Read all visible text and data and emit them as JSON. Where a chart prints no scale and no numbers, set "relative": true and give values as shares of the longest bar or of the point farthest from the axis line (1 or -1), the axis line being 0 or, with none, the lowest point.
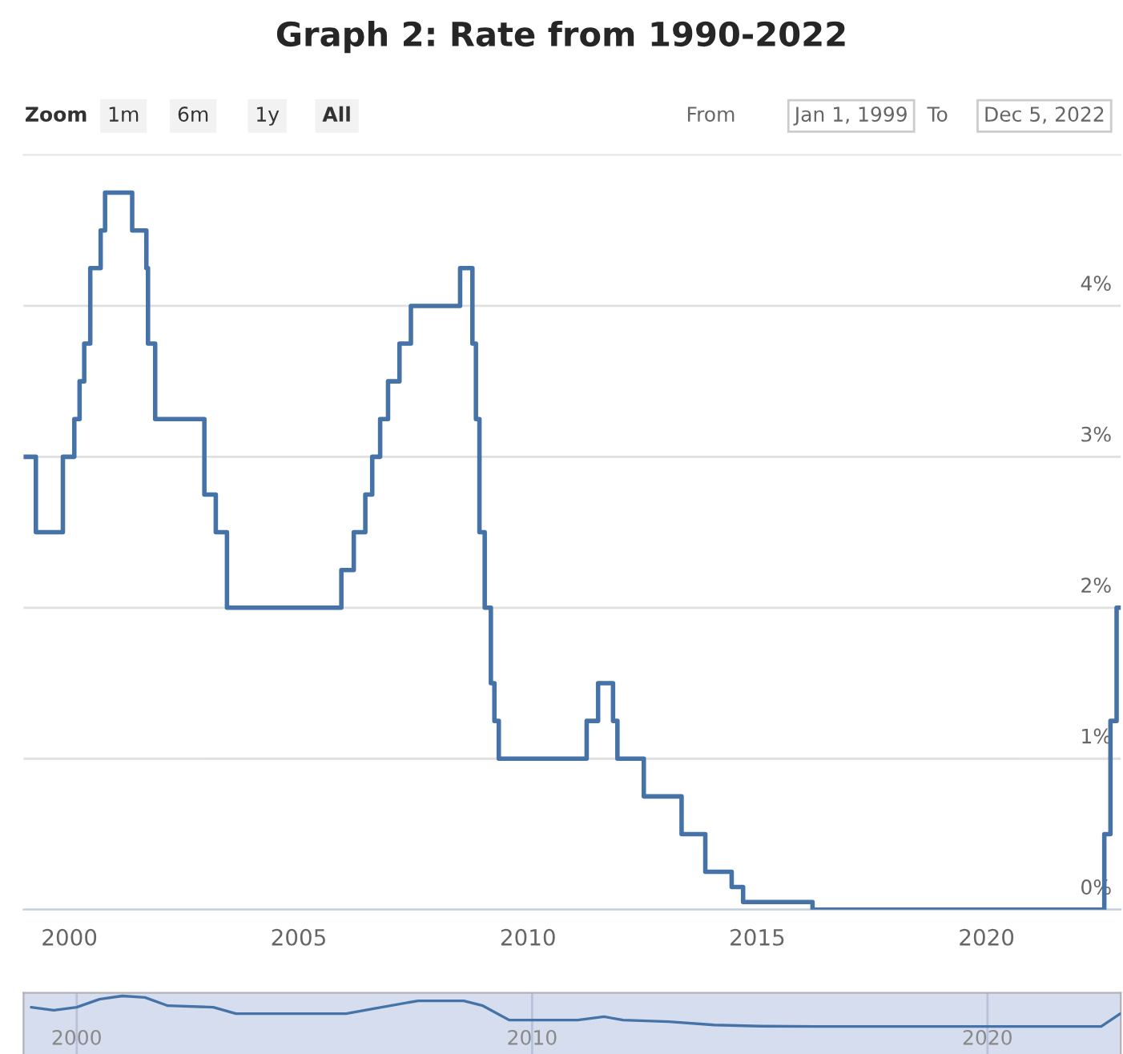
{
  "chart_data": [
    {
      "type": "step",
      "title": "Graph 2: Rate from 1990-2022",
      "annotations": [
        "Zoom",
        "1m",
        "6m",
        "1y",
        "All",
        "From",
        "Jan 1, 1999",
        "To",
        "Dec 5, 2022"
      ],
      "x": [
        "1999-01-01",
        "1999-04-09",
        "1999-11-10",
        "2000-02-09",
        "2000-03-22",
        "2000-04-28",
        "2000-06-15",
        "2000-09-06",
        "2000-10-11",
        "2001-05-15",
        "2001-09-05",
        "2001-09-18",
        "2001-11-14",
        "2002-12-11",
        "2003-03-12",
        "2003-06-09",
        "2005-12-06",
        "2006-03-15",
        "2006-06-15",
        "2006-08-09",
        "2006-10-11",
        "2006-12-13",
        "2007-03-14",
        "2007-06-13",
        "2008-07-09",
        "2008-10-15",
        "2008-11-12",
        "2008-12-10",
        "2009-01-21",
        "2009-03-11",
        "2009-04-08",
        "2009-05-13",
        "2011-04-13",
        "2011-07-13",
        "2011-11-09",
        "2011-12-14",
        "2012-07-11",
        "2013-05-08",
        "2013-11-13",
        "2014-06-11",
        "2014-09-10",
        "2016-03-16",
        "2022-07-27",
        "2022-09-14",
        "2022-11-02",
        "2022-12-05"
      ],
      "series": [
        {
          "color": "#4572a7",
          "values": [
            3.0,
            2.5,
            3.0,
            3.25,
            3.5,
            3.75,
            4.25,
            4.5,
            4.75,
            4.5,
            4.25,
            3.75,
            3.25,
            2.75,
            2.5,
            2.0,
            2.25,
            2.5,
            2.75,
            3.0,
            3.25,
            3.5,
            3.75,
            4.0,
            4.25,
            3.75,
            3.25,
            2.5,
            2.0,
            1.5,
            1.25,
            1.0,
            1.25,
            1.5,
            1.25,
            1.0,
            0.75,
            0.5,
            0.25,
            0.15,
            0.05,
            0.0,
            0.5,
            1.25,
            2.0,
            2.0
          ]
        }
      ],
      "xlim": [
        "1999-01-01",
        "2022-12-05"
      ],
      "xticks": [
        {
          "value": "2000",
          "label": "2000"
        },
        {
          "value": "2005",
          "label": "2005"
        },
        {
          "value": "2010",
          "label": "2010"
        },
        {
          "value": "2015",
          "label": "2015"
        },
        {
          "value": "2020",
          "label": "2020"
        }
      ],
      "ylim": [
        0,
        5
      ],
      "yticks": [
        {
          "value": 0,
          "label": "0%"
        },
        {
          "value": 1,
          "label": "1%"
        },
        {
          "value": 2,
          "label": "2%"
        },
        {
          "value": 3,
          "label": "3%"
        },
        {
          "value": 4,
          "label": "4%"
        }
      ],
      "grid": "y"
    },
    {
      "type": "line",
      "relative": true,
      "x": [
        "1999-01",
        "1999-07",
        "2000-01",
        "2000-07",
        "2001-01",
        "2001-07",
        "2002-01",
        "2003-01",
        "2003-07",
        "2005-12",
        "2006-07",
        "2007-07",
        "2008-07",
        "2008-12",
        "2009-07",
        "2011-01",
        "2011-08",
        "2012-01",
        "2013-01",
        "2014-01",
        "2015-01",
        "2016-04",
        "2022-07",
        "2022-12"
      ],
      "series": [
        {
          "color": "#4572a7",
          "values": [
            0.63,
            0.53,
            0.63,
            0.89,
            1.0,
            0.95,
            0.68,
            0.63,
            0.42,
            0.42,
            0.58,
            0.84,
            0.84,
            0.68,
            0.21,
            0.21,
            0.32,
            0.21,
            0.16,
            0.05,
            0.01,
            0.0,
            0.0,
            0.42
          ]
        }
      ],
      "xlim": [
        "1998-11-01",
        "2022-12-05"
      ],
      "xticks": [
        {
          "value": "2000",
          "label": "2000"
        },
        {
          "value": "2010",
          "label": "2010"
        },
        {
          "value": "2020",
          "label": "2020"
        }
      ],
      "grid": "x",
      "tick_labels": "x"
    }
  ]
}
